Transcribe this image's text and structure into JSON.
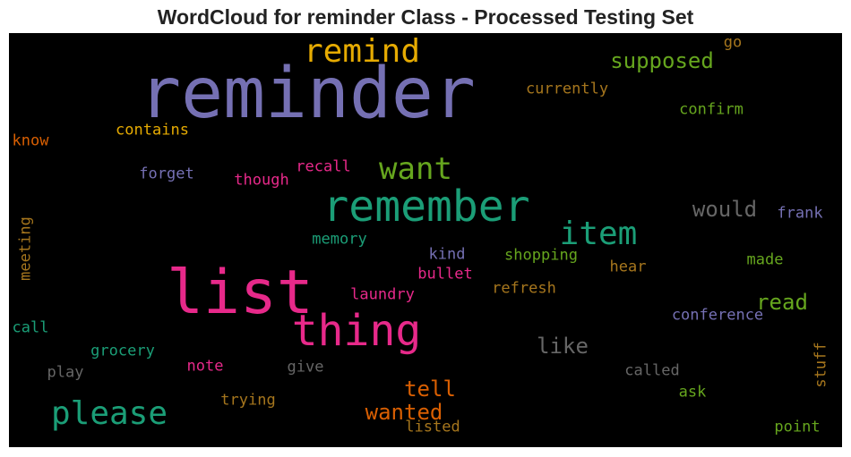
{
  "title": "WordCloud for reminder Class - Processed Testing Set",
  "wordcloud": {
    "background": "#000000",
    "words": [
      {
        "text": "reminder",
        "color": "#7570b3"
      },
      {
        "text": "list",
        "color": "#e7298a"
      },
      {
        "text": "remember",
        "color": "#1b9e77"
      },
      {
        "text": "thing",
        "color": "#e7298a"
      },
      {
        "text": "remind",
        "color": "#e6ab02"
      },
      {
        "text": "please",
        "color": "#1b9e77"
      },
      {
        "text": "item",
        "color": "#1b9e77"
      },
      {
        "text": "want",
        "color": "#66a61e"
      },
      {
        "text": "supposed",
        "color": "#66a61e"
      },
      {
        "text": "would",
        "color": "#666666"
      },
      {
        "text": "read",
        "color": "#66a61e"
      },
      {
        "text": "like",
        "color": "#666666"
      },
      {
        "text": "tell",
        "color": "#d95f02"
      },
      {
        "text": "wanted",
        "color": "#d95f02"
      },
      {
        "text": "currently",
        "color": "#a6761d"
      },
      {
        "text": "confirm",
        "color": "#66a61e"
      },
      {
        "text": "go",
        "color": "#a6761d"
      },
      {
        "text": "contains",
        "color": "#e6ab02"
      },
      {
        "text": "know",
        "color": "#d95f02"
      },
      {
        "text": "forget",
        "color": "#7570b3"
      },
      {
        "text": "though",
        "color": "#e7298a"
      },
      {
        "text": "recall",
        "color": "#e7298a"
      },
      {
        "text": "frank",
        "color": "#7570b3"
      },
      {
        "text": "meeting",
        "color": "#a6761d"
      },
      {
        "text": "memory",
        "color": "#1b9e77"
      },
      {
        "text": "kind",
        "color": "#7570b3"
      },
      {
        "text": "shopping",
        "color": "#66a61e"
      },
      {
        "text": "hear",
        "color": "#a6761d"
      },
      {
        "text": "made",
        "color": "#66a61e"
      },
      {
        "text": "bullet",
        "color": "#e7298a"
      },
      {
        "text": "laundry",
        "color": "#e7298a"
      },
      {
        "text": "refresh",
        "color": "#a6761d"
      },
      {
        "text": "conference",
        "color": "#7570b3"
      },
      {
        "text": "call",
        "color": "#1b9e77"
      },
      {
        "text": "grocery",
        "color": "#1b9e77"
      },
      {
        "text": "play",
        "color": "#666666"
      },
      {
        "text": "note",
        "color": "#e7298a"
      },
      {
        "text": "give",
        "color": "#666666"
      },
      {
        "text": "called",
        "color": "#666666"
      },
      {
        "text": "ask",
        "color": "#66a61e"
      },
      {
        "text": "stuff",
        "color": "#a6761d"
      },
      {
        "text": "trying",
        "color": "#a6761d"
      },
      {
        "text": "listed",
        "color": "#a6761d"
      },
      {
        "text": "point",
        "color": "#66a61e"
      }
    ]
  }
}
